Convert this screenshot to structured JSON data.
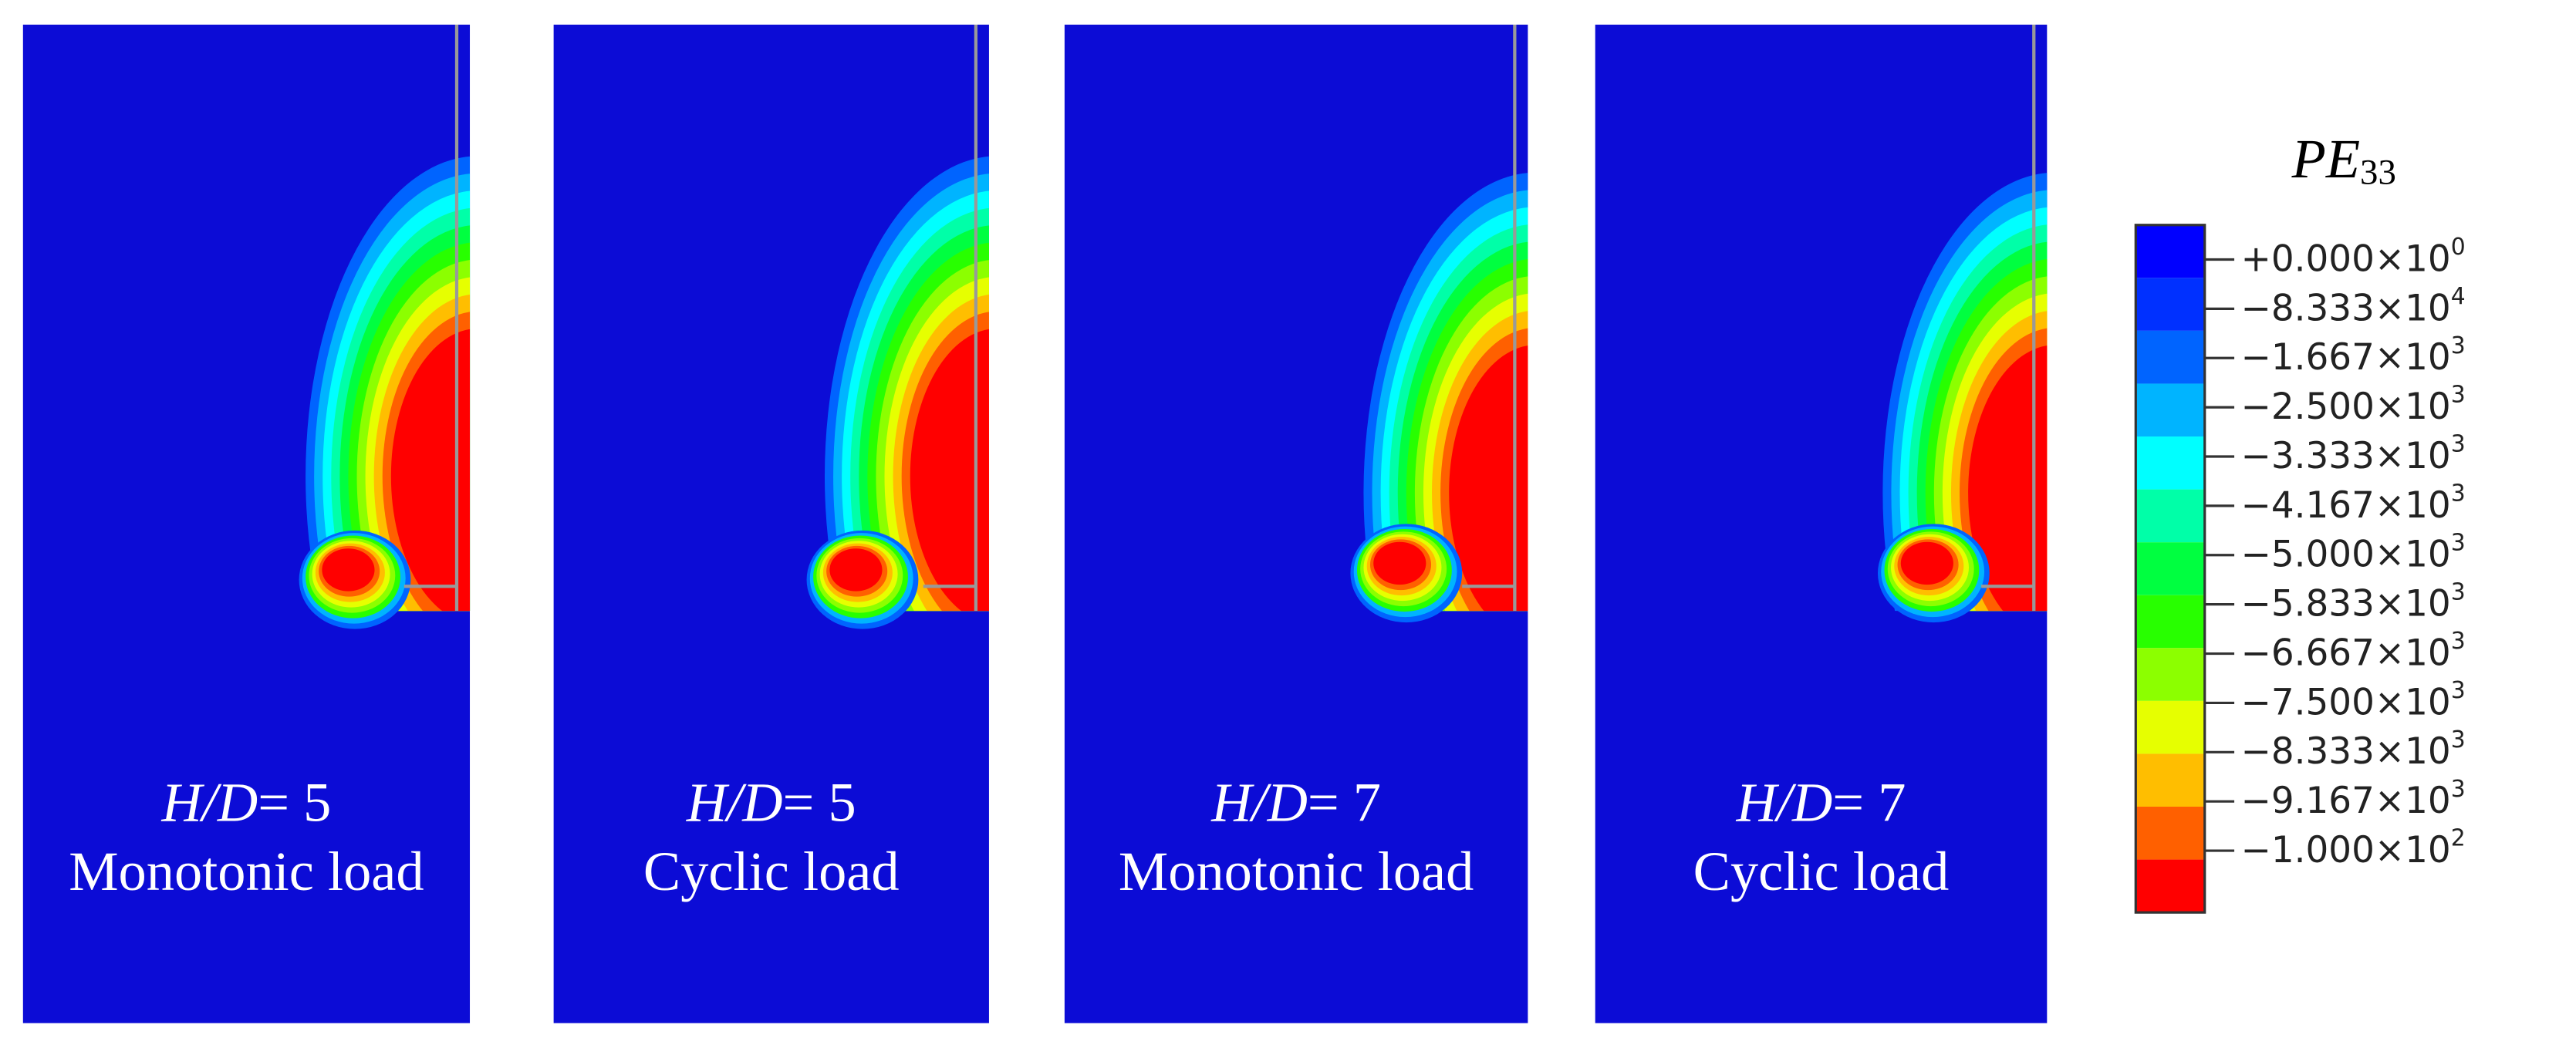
{
  "panels": [
    {
      "ratio": {
        "var": "H/D",
        "eq": "= 5"
      },
      "load": "Monotonic load"
    },
    {
      "ratio": {
        "var": "H/D",
        "eq": "= 5"
      },
      "load": "Cyclic load"
    },
    {
      "ratio": {
        "var": "H/D",
        "eq": "= 7"
      },
      "load": "Monotonic load"
    },
    {
      "ratio": {
        "var": "H/D",
        "eq": "= 7"
      },
      "load": "Cyclic load"
    }
  ],
  "legend": {
    "title": {
      "main": "PE",
      "sub": "33"
    },
    "colors": [
      "#0000ff",
      "#0030ff",
      "#0064ff",
      "#00b4ff",
      "#00ffff",
      "#00ffa8",
      "#00ff40",
      "#28ff00",
      "#8cff00",
      "#e6ff00",
      "#ffbe00",
      "#ff6000",
      "#ff0000"
    ],
    "labels": [
      {
        "mantissa": "+0.000×10",
        "exponent": "0"
      },
      {
        "mantissa": "−8.333×10",
        "exponent": "4"
      },
      {
        "mantissa": "−1.667×10",
        "exponent": "3"
      },
      {
        "mantissa": "−2.500×10",
        "exponent": "3"
      },
      {
        "mantissa": "−3.333×10",
        "exponent": "3"
      },
      {
        "mantissa": "−4.167×10",
        "exponent": "3"
      },
      {
        "mantissa": "−5.000×10",
        "exponent": "3"
      },
      {
        "mantissa": "−5.833×10",
        "exponent": "3"
      },
      {
        "mantissa": "−6.667×10",
        "exponent": "3"
      },
      {
        "mantissa": "−7.500×10",
        "exponent": "3"
      },
      {
        "mantissa": "−8.333×10",
        "exponent": "3"
      },
      {
        "mantissa": "−9.167×10",
        "exponent": "3"
      },
      {
        "mantissa": "−1.000×10",
        "exponent": "2"
      }
    ]
  }
}
